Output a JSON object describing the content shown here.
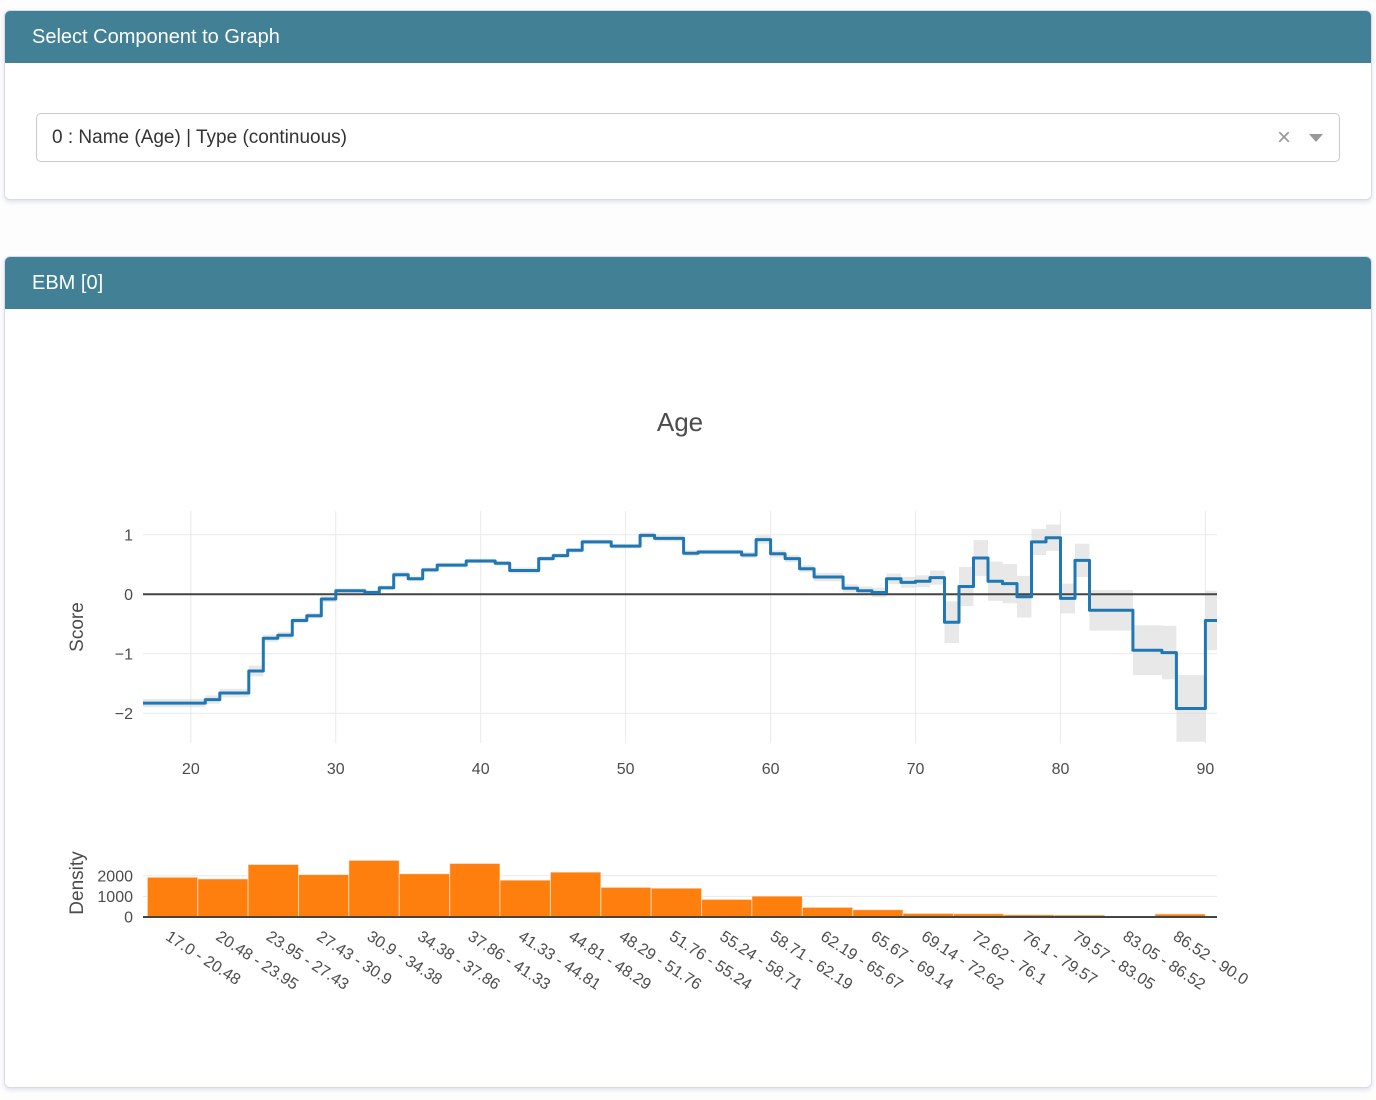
{
  "theme": {
    "header_bg": "#428095",
    "header_text": "#ffffff",
    "line_blue": "#1f77b4",
    "bar_orange": "#ff7f0e",
    "band_gray": "#d9d9d9"
  },
  "selector": {
    "header": "Select Component to Graph",
    "dropdown": {
      "value": "0 : Name (Age) | Type (continuous)",
      "clear_icon": "×"
    }
  },
  "ebm": {
    "header": "EBM [0]"
  },
  "chart_data": [
    {
      "type": "line",
      "subtype": "step-after",
      "title": "Age",
      "xlabel": "",
      "ylabel": "Score",
      "xlim": [
        16.7,
        90.8
      ],
      "ylim": [
        -2.5,
        1.4
      ],
      "x_ticks": [
        20,
        30,
        40,
        50,
        60,
        70,
        80,
        90
      ],
      "y_ticks": [
        1,
        0,
        -1,
        -2
      ],
      "grid": true,
      "zeroline": true,
      "legend": "none",
      "line_color": "#1f77b4",
      "band_color": "#d9d9d9",
      "steps_format": [
        "x_start",
        "x_end",
        "score",
        "error_halfwidth"
      ],
      "steps": [
        [
          17,
          21,
          -1.83,
          0.07
        ],
        [
          21,
          22,
          -1.77,
          0.07
        ],
        [
          22,
          24,
          -1.66,
          0.07
        ],
        [
          24,
          25,
          -1.29,
          0.09
        ],
        [
          25,
          26,
          -0.74,
          0.06
        ],
        [
          26,
          27,
          -0.69,
          0.06
        ],
        [
          27,
          28,
          -0.44,
          0.05
        ],
        [
          28,
          29,
          -0.36,
          0.05
        ],
        [
          29,
          30,
          -0.08,
          0.05
        ],
        [
          30,
          32,
          0.06,
          0.04
        ],
        [
          32,
          33,
          0.03,
          0.04
        ],
        [
          33,
          34,
          0.11,
          0.04
        ],
        [
          34,
          35,
          0.33,
          0.05
        ],
        [
          35,
          36,
          0.26,
          0.04
        ],
        [
          36,
          37,
          0.41,
          0.04
        ],
        [
          37,
          39,
          0.49,
          0.04
        ],
        [
          39,
          41,
          0.56,
          0.04
        ],
        [
          41,
          42,
          0.52,
          0.04
        ],
        [
          42,
          44,
          0.4,
          0.05
        ],
        [
          44,
          45,
          0.6,
          0.04
        ],
        [
          45,
          46,
          0.65,
          0.04
        ],
        [
          46,
          47,
          0.74,
          0.04
        ],
        [
          47,
          49,
          0.88,
          0.04
        ],
        [
          49,
          51,
          0.81,
          0.04
        ],
        [
          51,
          52,
          0.99,
          0.05
        ],
        [
          52,
          54,
          0.94,
          0.05
        ],
        [
          54,
          55,
          0.69,
          0.05
        ],
        [
          55,
          58,
          0.71,
          0.04
        ],
        [
          58,
          59,
          0.66,
          0.05
        ],
        [
          59,
          60,
          0.92,
          0.07
        ],
        [
          60,
          61,
          0.68,
          0.06
        ],
        [
          61,
          62,
          0.6,
          0.06
        ],
        [
          62,
          63,
          0.43,
          0.06
        ],
        [
          63,
          65,
          0.29,
          0.07
        ],
        [
          65,
          66,
          0.1,
          0.07
        ],
        [
          66,
          67,
          0.06,
          0.07
        ],
        [
          67,
          68,
          0.03,
          0.08
        ],
        [
          68,
          69,
          0.26,
          0.09
        ],
        [
          69,
          70,
          0.2,
          0.09
        ],
        [
          70,
          71,
          0.22,
          0.1
        ],
        [
          71,
          72,
          0.28,
          0.12
        ],
        [
          72,
          73,
          -0.47,
          0.35
        ],
        [
          73,
          74,
          0.13,
          0.33
        ],
        [
          74,
          75,
          0.61,
          0.3
        ],
        [
          75,
          76,
          0.22,
          0.33
        ],
        [
          76,
          77,
          0.18,
          0.33
        ],
        [
          77,
          78,
          -0.04,
          0.35
        ],
        [
          78,
          79,
          0.88,
          0.22
        ],
        [
          79,
          80,
          0.95,
          0.22
        ],
        [
          80,
          81,
          -0.07,
          0.25
        ],
        [
          81,
          82,
          0.57,
          0.28
        ],
        [
          82,
          85,
          -0.27,
          0.34
        ],
        [
          85,
          87,
          -0.94,
          0.42
        ],
        [
          87,
          88,
          -0.98,
          0.45
        ],
        [
          88,
          90,
          -1.92,
          0.56
        ],
        [
          90,
          91,
          -0.44,
          0.5
        ]
      ]
    },
    {
      "type": "bar",
      "subtype": "histogram",
      "title": "",
      "xlabel": "",
      "ylabel": "Density",
      "y_ticks": [
        0,
        1000,
        2000
      ],
      "bar_color": "#ff7f0e",
      "bin_edges": [
        17.0,
        20.48,
        23.95,
        27.43,
        30.9,
        34.38,
        37.86,
        41.33,
        44.81,
        48.29,
        51.76,
        55.24,
        58.71,
        62.19,
        65.67,
        69.14,
        72.62,
        76.1,
        79.57,
        83.05,
        86.52,
        90.0
      ],
      "categories": [
        "17.0 - 20.48",
        "20.48 - 23.95",
        "23.95 - 27.43",
        "27.43 - 30.9",
        "30.9 - 34.38",
        "34.38 - 37.86",
        "37.86 - 41.33",
        "41.33 - 44.81",
        "44.81 - 48.29",
        "48.29 - 51.76",
        "51.76 - 55.24",
        "55.24 - 58.71",
        "58.71 - 62.19",
        "62.19 - 65.67",
        "65.67 - 69.14",
        "69.14 - 72.62",
        "72.62 - 76.1",
        "76.1 - 79.57",
        "79.57 - 83.05",
        "83.05 - 86.52",
        "86.52 - 90.0"
      ],
      "values": [
        1930,
        1850,
        2550,
        2060,
        2750,
        2100,
        2600,
        1790,
        2180,
        1440,
        1400,
        855,
        1015,
        470,
        355,
        175,
        160,
        110,
        95,
        30,
        145
      ]
    }
  ]
}
